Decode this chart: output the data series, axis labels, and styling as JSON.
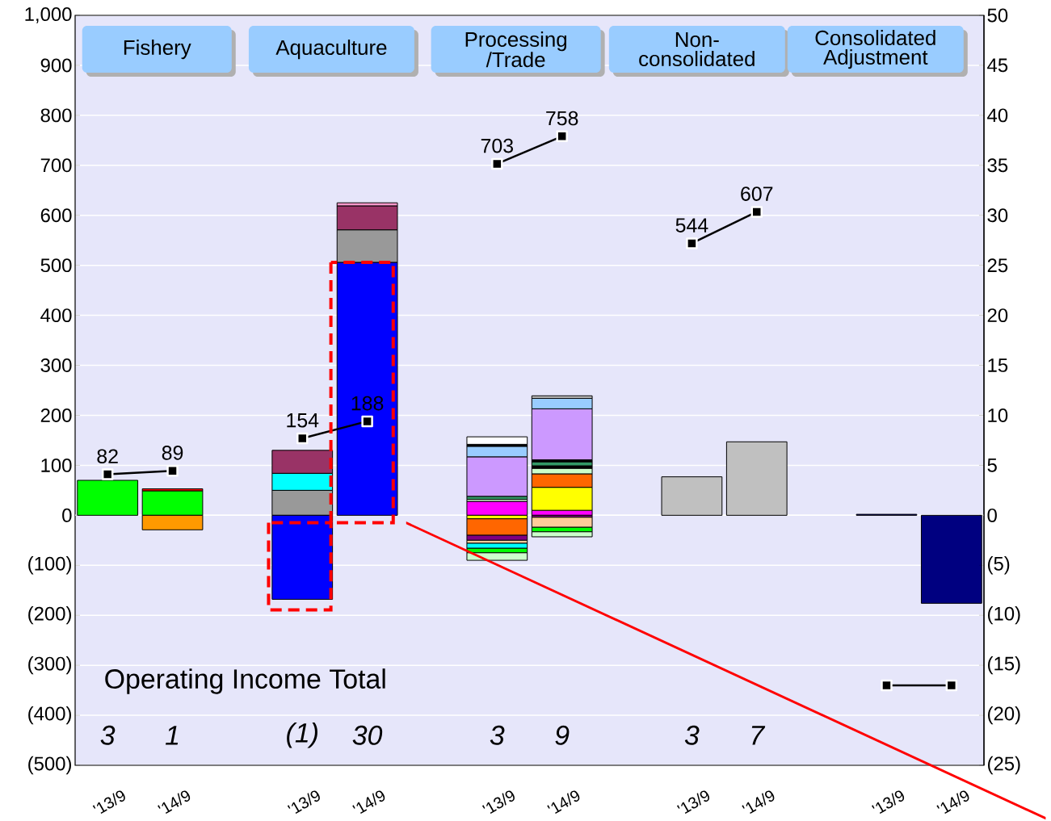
{
  "chart_data": {
    "type": "bar",
    "stacked": true,
    "grid": "y",
    "categories": [
      "'13/9",
      "'14/9",
      null,
      "'13/9",
      "'14/9",
      null,
      "'13/9",
      "'14/9",
      null,
      "'13/9",
      "'14/9",
      null,
      "'13/9",
      "'14/9"
    ],
    "ylim": [
      -500,
      1000
    ],
    "yticks": [
      {
        "value": -500,
        "label": "(500)"
      },
      {
        "value": -400,
        "label": "(400)"
      },
      {
        "value": -300,
        "label": "(300)"
      },
      {
        "value": -200,
        "label": "(200)"
      },
      {
        "value": -100,
        "label": "(100)"
      },
      0,
      100,
      200,
      300,
      400,
      500,
      600,
      700,
      800,
      900,
      {
        "value": 1000,
        "label": "1,000"
      }
    ],
    "y2lim": [
      -25,
      50
    ],
    "y2ticks": [
      {
        "value": -25,
        "label": "(25)"
      },
      {
        "value": -20,
        "label": "(20)"
      },
      {
        "value": -15,
        "label": "(15)"
      },
      {
        "value": -10,
        "label": "(10)"
      },
      {
        "value": -5,
        "label": "(5)"
      },
      0,
      5,
      10,
      15,
      20,
      25,
      30,
      35,
      40,
      45,
      50
    ],
    "annotations": [
      "Fishery",
      "Aquaculture",
      "Processing /Trade",
      "Non- consolidated",
      "Consolidated Adjustment",
      "Operating Income Total",
      "3",
      "1",
      "(1)",
      "30",
      "3",
      "9",
      "3",
      "7"
    ],
    "series": [
      {
        "type": "bar",
        "values": [
          70,
          49,
          null,
          50,
          506,
          null,
          28,
          10,
          null,
          77,
          147,
          null,
          2,
          null
        ],
        "colors": [
          "#00ff00",
          "#00ff00",
          null,
          "#999999",
          "#0000ff",
          null,
          "#ff00ff",
          "#ff00ff",
          null,
          "#c0c0c0",
          "#c0c0c0",
          null,
          "#000080",
          null
        ]
      },
      {
        "type": "bar",
        "values": [
          null,
          4,
          null,
          34,
          65,
          null,
          4,
          46,
          null,
          null,
          null,
          null,
          null,
          null
        ],
        "colors": [
          null,
          "#ff0000",
          null,
          "#00ffff",
          "#999999",
          null,
          "#ccffcc",
          "#ffff00",
          null,
          null,
          null,
          null,
          null,
          null
        ]
      },
      {
        "type": "bar",
        "values": [
          null,
          null,
          null,
          46,
          48,
          null,
          6,
          27,
          null,
          null,
          null,
          null,
          null,
          null
        ],
        "colors": [
          null,
          null,
          null,
          "#993366",
          "#993366",
          null,
          "#339966",
          "#ff6600",
          null,
          null,
          null,
          null,
          null,
          null
        ]
      },
      {
        "type": "bar",
        "values": [
          null,
          null,
          null,
          null,
          6,
          null,
          79,
          11,
          null,
          null,
          null,
          null,
          null,
          null
        ],
        "colors": [
          null,
          null,
          null,
          null,
          "#ff99cc",
          null,
          "#cc99ff",
          "#ccffcc",
          null,
          null,
          null,
          null,
          null,
          null
        ]
      },
      {
        "type": "bar",
        "values": [
          null,
          null,
          null,
          null,
          null,
          null,
          21,
          5,
          null,
          null,
          null,
          null,
          null,
          null
        ],
        "colors": [
          null,
          null,
          null,
          null,
          null,
          null,
          "#99ccff",
          "#000000",
          null,
          null,
          null,
          null,
          null,
          null
        ]
      },
      {
        "type": "bar",
        "values": [
          null,
          null,
          null,
          null,
          null,
          null,
          4,
          8,
          null,
          null,
          null,
          null,
          null,
          null
        ],
        "colors": [
          null,
          null,
          null,
          null,
          null,
          null,
          "#000000",
          "#339966",
          null,
          null,
          null,
          null,
          null,
          null
        ]
      },
      {
        "type": "bar",
        "values": [
          null,
          null,
          null,
          null,
          null,
          null,
          15,
          4,
          null,
          null,
          null,
          null,
          null,
          null
        ],
        "colors": [
          null,
          null,
          null,
          null,
          null,
          null,
          "#ffffff",
          "#000000",
          null,
          null,
          null,
          null,
          null,
          null
        ]
      },
      {
        "type": "bar",
        "values": [
          null,
          null,
          null,
          null,
          null,
          null,
          null,
          102,
          null,
          null,
          null,
          null,
          null,
          null
        ],
        "colors": [
          null,
          null,
          null,
          null,
          null,
          null,
          null,
          "#cc99ff",
          null,
          null,
          null,
          null,
          null,
          null
        ]
      },
      {
        "type": "bar",
        "values": [
          null,
          null,
          null,
          null,
          null,
          null,
          null,
          21,
          null,
          null,
          null,
          null,
          null,
          null
        ],
        "colors": [
          null,
          null,
          null,
          null,
          null,
          null,
          null,
          "#99ccff",
          null,
          null,
          null,
          null,
          null,
          null
        ]
      },
      {
        "type": "bar",
        "values": [
          null,
          null,
          null,
          null,
          null,
          null,
          null,
          5,
          null,
          null,
          null,
          null,
          null,
          null
        ],
        "colors": [
          null,
          null,
          null,
          null,
          null,
          null,
          null,
          "#c0c0c0",
          null,
          null,
          null,
          null,
          null,
          null
        ]
      },
      {
        "type": "bar",
        "values": [
          null,
          -29,
          null,
          -168,
          null,
          null,
          -7,
          -4,
          null,
          null,
          null,
          null,
          null,
          -176
        ],
        "colors": [
          null,
          "#ff9900",
          null,
          "#0000ff",
          null,
          null,
          "#ffff00",
          "#800080",
          null,
          null,
          null,
          null,
          null,
          "#000080"
        ]
      },
      {
        "type": "bar",
        "values": [
          null,
          null,
          null,
          null,
          null,
          null,
          -33,
          -20,
          null,
          null,
          null,
          null,
          null,
          null
        ],
        "colors": [
          null,
          null,
          null,
          null,
          null,
          null,
          "#ff6600",
          "#ffcc99",
          null,
          null,
          null,
          null,
          null,
          null
        ]
      },
      {
        "type": "bar",
        "values": [
          null,
          null,
          null,
          null,
          null,
          null,
          -10,
          -9,
          null,
          null,
          null,
          null,
          null,
          null
        ],
        "colors": [
          null,
          null,
          null,
          null,
          null,
          null,
          "#800080",
          "#00ff00",
          null,
          null,
          null,
          null,
          null,
          null
        ]
      },
      {
        "type": "bar",
        "values": [
          null,
          null,
          null,
          null,
          null,
          null,
          -6,
          -10,
          null,
          null,
          null,
          null,
          null,
          null
        ],
        "colors": [
          null,
          null,
          null,
          null,
          null,
          null,
          "#ffcc99",
          "#ccffcc",
          null,
          null,
          null,
          null,
          null,
          null
        ]
      },
      {
        "type": "bar",
        "values": [
          null,
          null,
          null,
          null,
          null,
          null,
          -10,
          null,
          null,
          null,
          null,
          null,
          null,
          null
        ],
        "colors": [
          null,
          null,
          null,
          null,
          null,
          null,
          "#00ffff",
          null,
          null,
          null,
          null,
          null,
          null,
          null
        ]
      },
      {
        "type": "bar",
        "values": [
          null,
          null,
          null,
          null,
          null,
          null,
          -9,
          null,
          null,
          null,
          null,
          null,
          null,
          null
        ],
        "colors": [
          null,
          null,
          null,
          null,
          null,
          null,
          "#00ff00",
          null,
          null,
          null,
          null,
          null,
          null,
          null
        ]
      },
      {
        "type": "bar",
        "values": [
          null,
          null,
          null,
          null,
          null,
          null,
          -15,
          null,
          null,
          null,
          null,
          null,
          null,
          null
        ],
        "colors": [
          null,
          null,
          null,
          null,
          null,
          null,
          "#ccffcc",
          null,
          null,
          null,
          null,
          null,
          null,
          null
        ]
      },
      {
        "type": "line",
        "color": "#000000",
        "marker": "square",
        "values": [
          82,
          89,
          null,
          154,
          188,
          null,
          703,
          758,
          null,
          544,
          607,
          null,
          -340,
          -340
        ],
        "value_labels": [
          "82",
          "89",
          null,
          "154",
          "188",
          null,
          "703",
          "758",
          null,
          "544",
          "607",
          null,
          null,
          null
        ]
      }
    ]
  }
}
